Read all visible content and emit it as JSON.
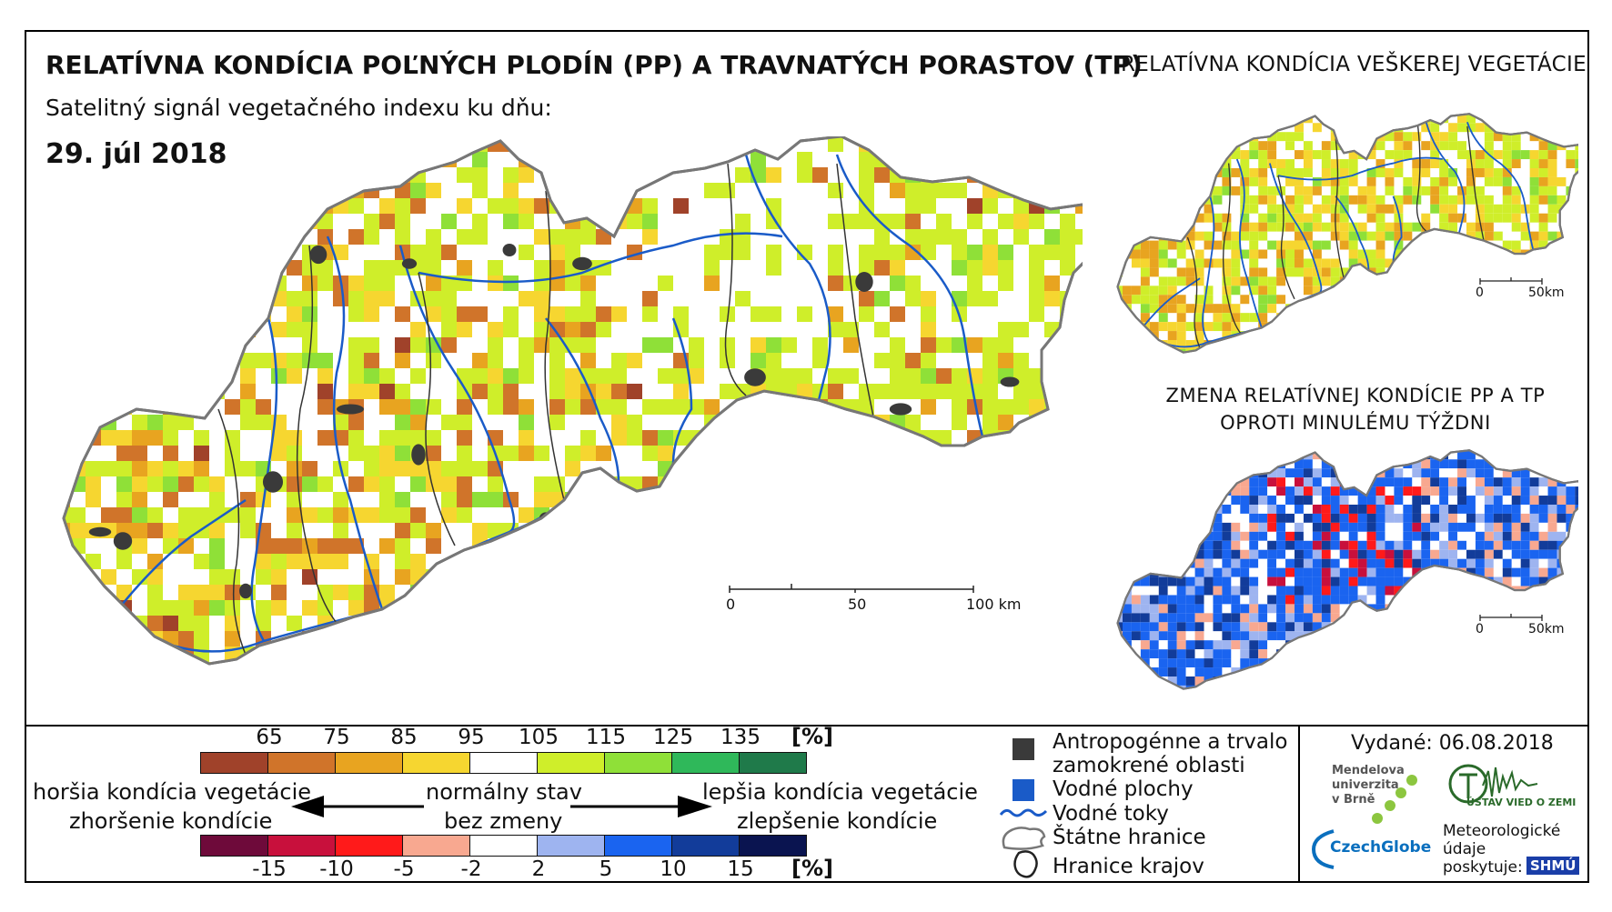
{
  "header": {
    "title": "RELATÍVNA KONDÍCIA POĽNÝCH PLODÍN (PP) A TRAVNATÝCH PORASTOV (TP)",
    "subtitle": "Satelitný signál vegetačného indexu ku dňu:",
    "date": "29. júl 2018"
  },
  "side_maps": {
    "top_title": "RELATÍVNA KONDÍCIA VEŠKEREJ VEGETÁCIE",
    "bottom_title_line1": "ZMENA RELATÍVNEJ KONDÍCIE PP A TP",
    "bottom_title_line2": "OPROTI MINULÉMU TÝŽDNI",
    "scale_zero": "0",
    "scale_end": "50km"
  },
  "main_scale": {
    "zero": "0",
    "mid": "50",
    "end": "100 km"
  },
  "legend_condition": {
    "ticks": [
      "65",
      "75",
      "85",
      "95",
      "105",
      "115",
      "125",
      "135"
    ],
    "unit": "[%]",
    "colors": [
      "#a0422a",
      "#d0742a",
      "#e8a420",
      "#f6d630",
      "#ffffff",
      "#cfee2a",
      "#8fe038",
      "#2fb85a",
      "#1f7a4a"
    ]
  },
  "legend_change": {
    "ticks": [
      "-15",
      "-10",
      "-5",
      "-2",
      "2",
      "5",
      "10",
      "15"
    ],
    "unit": "[%]",
    "colors": [
      "#6e0a3a",
      "#c8103c",
      "#ff1a1a",
      "#f8a890",
      "#ffffff",
      "#9eb4f0",
      "#1a64f0",
      "#123c9a",
      "#0a1450"
    ]
  },
  "legend_labels": {
    "worse_condition": "horšia kondícia vegetácie",
    "worse_change": "zhoršenie kondície",
    "normal_condition": "normálny stav",
    "normal_change": "bez zmeny",
    "better_condition": "lepšia kondícia vegetácie",
    "better_change": "zlepšenie kondície"
  },
  "symbols": {
    "urban_line1": "Antropogénne a trvalo",
    "urban_line2": "zamokrené oblasti",
    "water": "Vodné plochy",
    "rivers": "Vodné toky",
    "borders": "Štátne hranice",
    "regions": "Hranice krajov",
    "colors": {
      "urban": "#3a3a3a",
      "water": "#1a5bc8",
      "river": "#1a5bc8"
    }
  },
  "footer": {
    "issued": "Vydané: 06.08.2018",
    "mendel_line1": "Mendelova",
    "mendel_line2": "univerzita",
    "mendel_line3": "v Brně",
    "czechglobe": "CzechGlobe",
    "ustav": "ÚSTAV VIED O ZEMI",
    "meteo_line1": "Meteorologické",
    "meteo_line2": "údaje",
    "meteo_line3": "poskytuje:",
    "shmu": "SHMÚ"
  }
}
